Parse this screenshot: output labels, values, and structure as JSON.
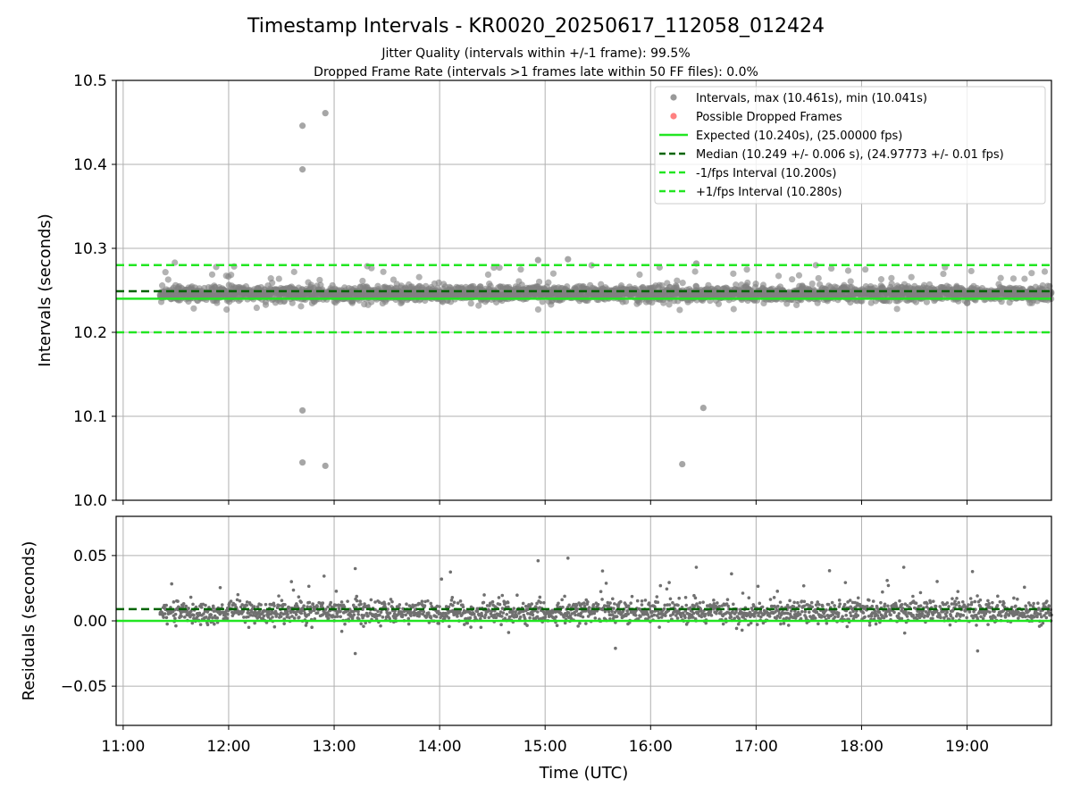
{
  "chart_data": [
    {
      "type": "scatter",
      "title": "Timestamp Intervals - KR0020_20250617_112058_012424",
      "subtitle_lines": [
        "Jitter Quality (intervals within +/-1 frame): 99.5%",
        "Dropped Frame Rate (intervals >1 frames late within 50 FF files): 0.0%"
      ],
      "xlabel": "",
      "ylabel": "Intervals (seconds)",
      "xlim": [
        "10:56",
        "19:48"
      ],
      "ylim": [
        10.0,
        10.5
      ],
      "yticks": [
        "10.0",
        "10.1",
        "10.2",
        "10.3",
        "10.4",
        "10.5"
      ],
      "grid": true,
      "legend_position": "top-right",
      "series": [
        {
          "name": "Intervals, max (10.461s), min (10.041s)",
          "kind": "points",
          "color": "#808080",
          "x_range": [
            "11:21",
            "19:48"
          ],
          "typical_y": 10.246,
          "outliers": [
            {
              "x": "12:42",
              "y": 10.446
            },
            {
              "x": "12:42",
              "y": 10.394
            },
            {
              "x": "12:42",
              "y": 10.107
            },
            {
              "x": "12:42",
              "y": 10.045
            },
            {
              "x": "12:55",
              "y": 10.461
            },
            {
              "x": "12:55",
              "y": 10.041
            },
            {
              "x": "16:18",
              "y": 10.043
            },
            {
              "x": "16:30",
              "y": 10.11
            },
            {
              "x": "14:56",
              "y": 10.286
            },
            {
              "x": "15:13",
              "y": 10.287
            },
            {
              "x": "16:26",
              "y": 10.282
            }
          ]
        },
        {
          "name": "Possible Dropped Frames",
          "kind": "points",
          "color": "#ff6060",
          "values": []
        },
        {
          "name": "Expected (10.240s), (25.00000 fps)",
          "kind": "hline",
          "y": 10.24,
          "color": "#22e622",
          "style": "solid"
        },
        {
          "name": "Median (10.249 +/- 0.006 s), (24.97773 +/- 0.01 fps)",
          "kind": "hline",
          "y": 10.249,
          "color": "#006400",
          "style": "dashed"
        },
        {
          "name": "-1/fps Interval (10.200s)",
          "kind": "hline",
          "y": 10.2,
          "color": "#22e622",
          "style": "dashed"
        },
        {
          "name": "+1/fps Interval (10.280s)",
          "kind": "hline",
          "y": 10.28,
          "color": "#22e622",
          "style": "dashed"
        }
      ]
    },
    {
      "type": "scatter",
      "title": "",
      "xlabel": "Time (UTC)",
      "ylabel": "Residuals (seconds)",
      "xlim": [
        "10:56",
        "19:48"
      ],
      "ylim": [
        -0.08,
        0.08
      ],
      "xticks": [
        "11:00",
        "12:00",
        "13:00",
        "14:00",
        "15:00",
        "16:00",
        "17:00",
        "18:00",
        "19:00"
      ],
      "yticks": [
        "−0.05",
        "0.00",
        "0.05"
      ],
      "grid": true,
      "series": [
        {
          "name": "",
          "kind": "points",
          "color": "#707070",
          "x_range": [
            "11:21",
            "19:48"
          ],
          "typical_y": 0.007,
          "outliers": [
            {
              "x": "14:56",
              "y": 0.046
            },
            {
              "x": "15:13",
              "y": 0.048
            },
            {
              "x": "13:12",
              "y": 0.04
            },
            {
              "x": "16:26",
              "y": 0.041
            },
            {
              "x": "18:24",
              "y": 0.041
            },
            {
              "x": "13:12",
              "y": -0.025
            },
            {
              "x": "15:40",
              "y": -0.021
            },
            {
              "x": "19:06",
              "y": -0.023
            }
          ]
        },
        {
          "name": "",
          "kind": "hline",
          "y": 0.0,
          "color": "#22e622",
          "style": "solid"
        },
        {
          "name": "",
          "kind": "hline",
          "y": 0.009,
          "color": "#006400",
          "style": "dashed"
        }
      ]
    }
  ]
}
